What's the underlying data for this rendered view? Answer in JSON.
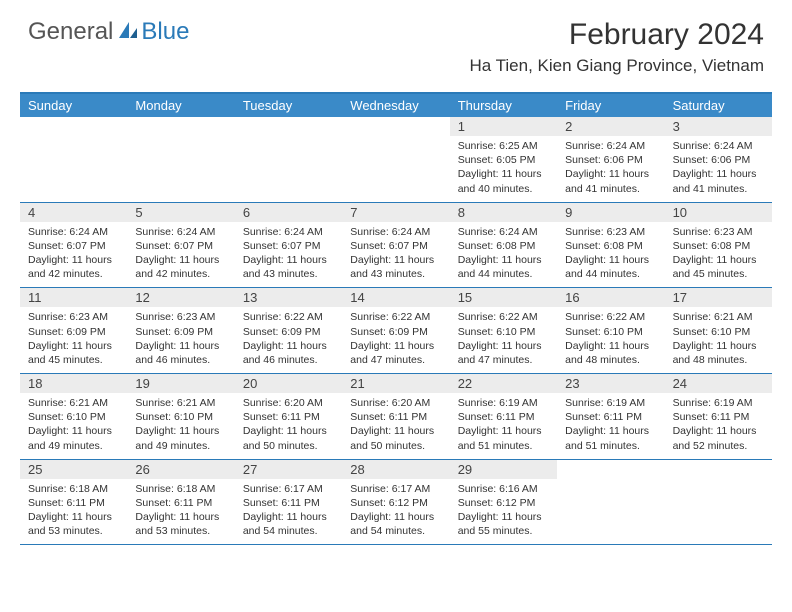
{
  "logo": {
    "part1": "General",
    "part2": "Blue"
  },
  "title": "February 2024",
  "location": "Ha Tien, Kien Giang Province, Vietnam",
  "colors": {
    "header_bg": "#3a8ac8",
    "border": "#2a7ab8",
    "daynum_bg": "#ececec",
    "text": "#333333",
    "logo_gray": "#555555",
    "logo_blue": "#2a7ab8"
  },
  "dayNames": [
    "Sunday",
    "Monday",
    "Tuesday",
    "Wednesday",
    "Thursday",
    "Friday",
    "Saturday"
  ],
  "weeks": [
    [
      {
        "num": "",
        "sunrise": "",
        "sunset": "",
        "daylight": ""
      },
      {
        "num": "",
        "sunrise": "",
        "sunset": "",
        "daylight": ""
      },
      {
        "num": "",
        "sunrise": "",
        "sunset": "",
        "daylight": ""
      },
      {
        "num": "",
        "sunrise": "",
        "sunset": "",
        "daylight": ""
      },
      {
        "num": "1",
        "sunrise": "Sunrise: 6:25 AM",
        "sunset": "Sunset: 6:05 PM",
        "daylight": "Daylight: 11 hours and 40 minutes."
      },
      {
        "num": "2",
        "sunrise": "Sunrise: 6:24 AM",
        "sunset": "Sunset: 6:06 PM",
        "daylight": "Daylight: 11 hours and 41 minutes."
      },
      {
        "num": "3",
        "sunrise": "Sunrise: 6:24 AM",
        "sunset": "Sunset: 6:06 PM",
        "daylight": "Daylight: 11 hours and 41 minutes."
      }
    ],
    [
      {
        "num": "4",
        "sunrise": "Sunrise: 6:24 AM",
        "sunset": "Sunset: 6:07 PM",
        "daylight": "Daylight: 11 hours and 42 minutes."
      },
      {
        "num": "5",
        "sunrise": "Sunrise: 6:24 AM",
        "sunset": "Sunset: 6:07 PM",
        "daylight": "Daylight: 11 hours and 42 minutes."
      },
      {
        "num": "6",
        "sunrise": "Sunrise: 6:24 AM",
        "sunset": "Sunset: 6:07 PM",
        "daylight": "Daylight: 11 hours and 43 minutes."
      },
      {
        "num": "7",
        "sunrise": "Sunrise: 6:24 AM",
        "sunset": "Sunset: 6:07 PM",
        "daylight": "Daylight: 11 hours and 43 minutes."
      },
      {
        "num": "8",
        "sunrise": "Sunrise: 6:24 AM",
        "sunset": "Sunset: 6:08 PM",
        "daylight": "Daylight: 11 hours and 44 minutes."
      },
      {
        "num": "9",
        "sunrise": "Sunrise: 6:23 AM",
        "sunset": "Sunset: 6:08 PM",
        "daylight": "Daylight: 11 hours and 44 minutes."
      },
      {
        "num": "10",
        "sunrise": "Sunrise: 6:23 AM",
        "sunset": "Sunset: 6:08 PM",
        "daylight": "Daylight: 11 hours and 45 minutes."
      }
    ],
    [
      {
        "num": "11",
        "sunrise": "Sunrise: 6:23 AM",
        "sunset": "Sunset: 6:09 PM",
        "daylight": "Daylight: 11 hours and 45 minutes."
      },
      {
        "num": "12",
        "sunrise": "Sunrise: 6:23 AM",
        "sunset": "Sunset: 6:09 PM",
        "daylight": "Daylight: 11 hours and 46 minutes."
      },
      {
        "num": "13",
        "sunrise": "Sunrise: 6:22 AM",
        "sunset": "Sunset: 6:09 PM",
        "daylight": "Daylight: 11 hours and 46 minutes."
      },
      {
        "num": "14",
        "sunrise": "Sunrise: 6:22 AM",
        "sunset": "Sunset: 6:09 PM",
        "daylight": "Daylight: 11 hours and 47 minutes."
      },
      {
        "num": "15",
        "sunrise": "Sunrise: 6:22 AM",
        "sunset": "Sunset: 6:10 PM",
        "daylight": "Daylight: 11 hours and 47 minutes."
      },
      {
        "num": "16",
        "sunrise": "Sunrise: 6:22 AM",
        "sunset": "Sunset: 6:10 PM",
        "daylight": "Daylight: 11 hours and 48 minutes."
      },
      {
        "num": "17",
        "sunrise": "Sunrise: 6:21 AM",
        "sunset": "Sunset: 6:10 PM",
        "daylight": "Daylight: 11 hours and 48 minutes."
      }
    ],
    [
      {
        "num": "18",
        "sunrise": "Sunrise: 6:21 AM",
        "sunset": "Sunset: 6:10 PM",
        "daylight": "Daylight: 11 hours and 49 minutes."
      },
      {
        "num": "19",
        "sunrise": "Sunrise: 6:21 AM",
        "sunset": "Sunset: 6:10 PM",
        "daylight": "Daylight: 11 hours and 49 minutes."
      },
      {
        "num": "20",
        "sunrise": "Sunrise: 6:20 AM",
        "sunset": "Sunset: 6:11 PM",
        "daylight": "Daylight: 11 hours and 50 minutes."
      },
      {
        "num": "21",
        "sunrise": "Sunrise: 6:20 AM",
        "sunset": "Sunset: 6:11 PM",
        "daylight": "Daylight: 11 hours and 50 minutes."
      },
      {
        "num": "22",
        "sunrise": "Sunrise: 6:19 AM",
        "sunset": "Sunset: 6:11 PM",
        "daylight": "Daylight: 11 hours and 51 minutes."
      },
      {
        "num": "23",
        "sunrise": "Sunrise: 6:19 AM",
        "sunset": "Sunset: 6:11 PM",
        "daylight": "Daylight: 11 hours and 51 minutes."
      },
      {
        "num": "24",
        "sunrise": "Sunrise: 6:19 AM",
        "sunset": "Sunset: 6:11 PM",
        "daylight": "Daylight: 11 hours and 52 minutes."
      }
    ],
    [
      {
        "num": "25",
        "sunrise": "Sunrise: 6:18 AM",
        "sunset": "Sunset: 6:11 PM",
        "daylight": "Daylight: 11 hours and 53 minutes."
      },
      {
        "num": "26",
        "sunrise": "Sunrise: 6:18 AM",
        "sunset": "Sunset: 6:11 PM",
        "daylight": "Daylight: 11 hours and 53 minutes."
      },
      {
        "num": "27",
        "sunrise": "Sunrise: 6:17 AM",
        "sunset": "Sunset: 6:11 PM",
        "daylight": "Daylight: 11 hours and 54 minutes."
      },
      {
        "num": "28",
        "sunrise": "Sunrise: 6:17 AM",
        "sunset": "Sunset: 6:12 PM",
        "daylight": "Daylight: 11 hours and 54 minutes."
      },
      {
        "num": "29",
        "sunrise": "Sunrise: 6:16 AM",
        "sunset": "Sunset: 6:12 PM",
        "daylight": "Daylight: 11 hours and 55 minutes."
      },
      {
        "num": "",
        "sunrise": "",
        "sunset": "",
        "daylight": ""
      },
      {
        "num": "",
        "sunrise": "",
        "sunset": "",
        "daylight": ""
      }
    ]
  ]
}
